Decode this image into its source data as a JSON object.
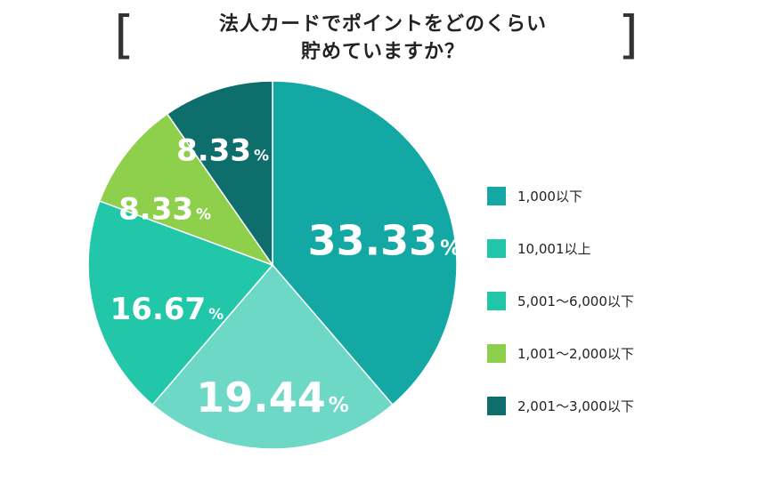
{
  "title": {
    "line1": "法人カードでポイントをどのくらい",
    "line2": "貯めていますか？",
    "bracket_left": "[",
    "bracket_right": "]"
  },
  "chart_data": {
    "type": "pie",
    "title": "法人カードでポイントをどのくらい貯めていますか？",
    "start_angle_deg": 0,
    "direction": "clockwise",
    "unit": "%",
    "legend_position": "right",
    "slices": [
      {
        "category": "1,000以下",
        "value": 33.33,
        "label": "33.33",
        "color": "#13A8A4",
        "label_size": "large"
      },
      {
        "category": "10,001以上",
        "value": 19.44,
        "label": "19.44",
        "color": "#6DD8C5",
        "label_size": "large"
      },
      {
        "category": "5,001〜6,000以下",
        "value": 16.67,
        "label": "16.67",
        "color": "#22C7A9",
        "label_size": "medium"
      },
      {
        "category": "1,001〜2,000以下",
        "value": 8.33,
        "label": "8.33",
        "color": "#8ED04C",
        "label_size": "medium"
      },
      {
        "category": "2,001〜3,000以下",
        "value": 8.33,
        "label": "8.33",
        "color": "#0E6E6C",
        "label_size": "medium"
      }
    ],
    "legend": [
      {
        "label": "1,000以下",
        "color": "#13A8A4"
      },
      {
        "label": "10,001以上",
        "color": "#22C7A9"
      },
      {
        "label": "5,001〜6,000以下",
        "color": "#22C7A9"
      },
      {
        "label": "1,001〜2,000以下",
        "color": "#8ED04C"
      },
      {
        "label": "2,001〜3,000以下",
        "color": "#0E6E6C"
      }
    ]
  }
}
